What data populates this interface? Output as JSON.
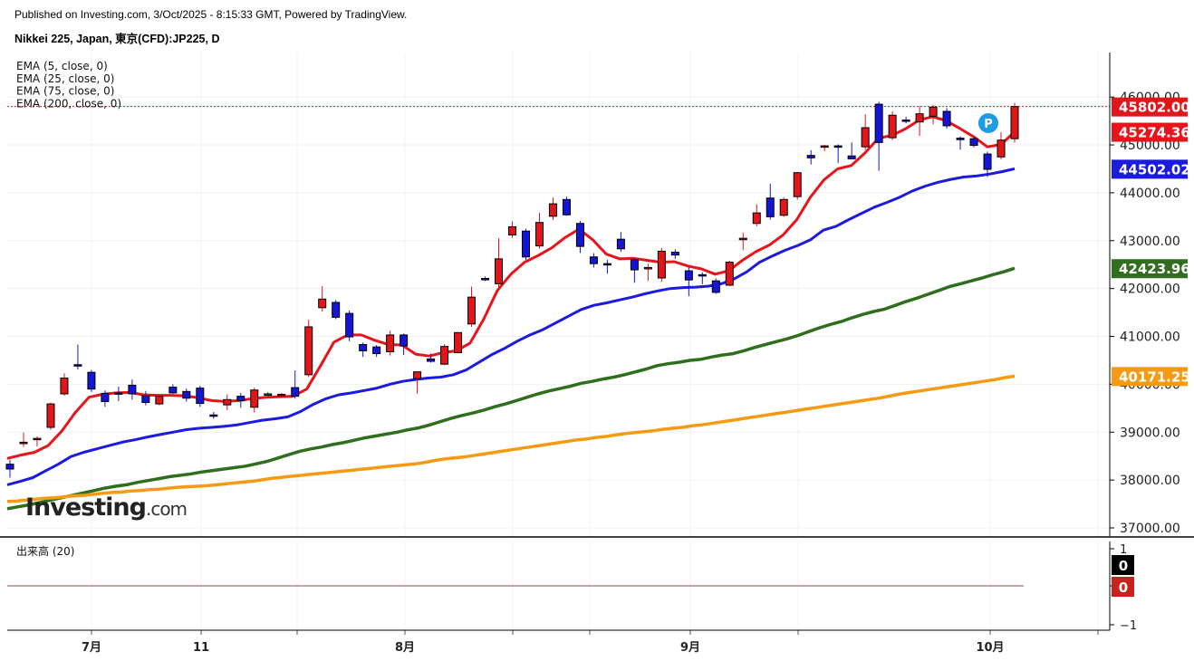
{
  "header": {
    "published": "Published on Investing.com, 3/Oct/2025 - 8:15:33 GMT, Powered by TradingView.",
    "title": "Nikkei 225, Japan, 東京(CFD):JP225, D"
  },
  "logo": {
    "text": "Investing",
    "suffix": ".com"
  },
  "volume_panel": {
    "label": "出来高 (20)",
    "ticks": [
      "1",
      "0",
      "−1"
    ],
    "badges": [
      "0",
      "0"
    ]
  },
  "colors": {
    "up": "#e0161b",
    "down": "#1515d6",
    "ema5": "#e8141c",
    "ema25": "#1a1ae0",
    "ema75": "#2f6e1d",
    "ema200": "#f59a12",
    "grid": "#eef0f3"
  },
  "marker": {
    "letter": "P"
  },
  "chart_data": {
    "type": "candlestick",
    "y_axis": {
      "ticks": [
        37000,
        38000,
        39000,
        40000,
        41000,
        42000,
        43000,
        44000,
        45000,
        46000
      ],
      "tick_labels": [
        "37000.00",
        "38000.00",
        "39000.00",
        "40000.00",
        "41000.00",
        "42000.00",
        "43000.00",
        "44000.00",
        "45000.00",
        "46000.00"
      ],
      "range": [
        36830,
        46930
      ]
    },
    "x_axis": {
      "labels": [
        "7月",
        "11",
        "8月",
        "9月",
        "10月"
      ]
    },
    "legend": [
      "EMA (5, close, 0)",
      "EMA (25, close, 0)",
      "EMA (75, close, 0)",
      "EMA (200, close, 0)"
    ],
    "price_labels": [
      {
        "name": "last",
        "value": 45802.0,
        "label": "45802.00",
        "color": "#e0161b"
      },
      {
        "name": "ema5",
        "value": 45274.36,
        "label": "45274.36",
        "color": "#e8141c"
      },
      {
        "name": "ema25",
        "value": 44502.02,
        "label": "44502.02",
        "color": "#1a1ae0"
      },
      {
        "name": "ema75",
        "value": 42423.96,
        "label": "42423.96",
        "color": "#2f6e1d"
      },
      {
        "name": "ema200",
        "value": 40171.25,
        "label": "40171.25",
        "color": "#f59a12"
      }
    ],
    "candles": [
      {
        "o": 38330,
        "h": 38420,
        "l": 38050,
        "c": 38230
      },
      {
        "o": 38760,
        "h": 38990,
        "l": 38690,
        "c": 38790
      },
      {
        "o": 38850,
        "h": 38910,
        "l": 38700,
        "c": 38870
      },
      {
        "o": 39100,
        "h": 39620,
        "l": 39050,
        "c": 39590
      },
      {
        "o": 39800,
        "h": 40230,
        "l": 39760,
        "c": 40130
      },
      {
        "o": 40410,
        "h": 40830,
        "l": 40310,
        "c": 40380
      },
      {
        "o": 40250,
        "h": 40300,
        "l": 39840,
        "c": 39900
      },
      {
        "o": 39810,
        "h": 39870,
        "l": 39530,
        "c": 39640
      },
      {
        "o": 39820,
        "h": 39950,
        "l": 39650,
        "c": 39810
      },
      {
        "o": 39980,
        "h": 40100,
        "l": 39680,
        "c": 39800
      },
      {
        "o": 39760,
        "h": 39860,
        "l": 39560,
        "c": 39620
      },
      {
        "o": 39590,
        "h": 39800,
        "l": 39560,
        "c": 39750
      },
      {
        "o": 39940,
        "h": 40000,
        "l": 39800,
        "c": 39820
      },
      {
        "o": 39850,
        "h": 39910,
        "l": 39640,
        "c": 39710
      },
      {
        "o": 39920,
        "h": 39970,
        "l": 39530,
        "c": 39600
      },
      {
        "o": 39360,
        "h": 39420,
        "l": 39280,
        "c": 39340
      },
      {
        "o": 39570,
        "h": 39790,
        "l": 39460,
        "c": 39680
      },
      {
        "o": 39750,
        "h": 39820,
        "l": 39510,
        "c": 39660
      },
      {
        "o": 39520,
        "h": 39930,
        "l": 39410,
        "c": 39880
      },
      {
        "o": 39800,
        "h": 39840,
        "l": 39740,
        "c": 39800
      },
      {
        "o": 39780,
        "h": 39820,
        "l": 39760,
        "c": 39790
      },
      {
        "o": 39930,
        "h": 40290,
        "l": 39700,
        "c": 39750
      },
      {
        "o": 40200,
        "h": 41350,
        "l": 40150,
        "c": 41200
      },
      {
        "o": 41600,
        "h": 42050,
        "l": 41520,
        "c": 41780
      },
      {
        "o": 41710,
        "h": 41760,
        "l": 41360,
        "c": 41400
      },
      {
        "o": 41480,
        "h": 41540,
        "l": 40900,
        "c": 40990
      },
      {
        "o": 40830,
        "h": 40870,
        "l": 40570,
        "c": 40700
      },
      {
        "o": 40780,
        "h": 40820,
        "l": 40570,
        "c": 40640
      },
      {
        "o": 40680,
        "h": 41120,
        "l": 40600,
        "c": 41030
      },
      {
        "o": 41030,
        "h": 41060,
        "l": 40610,
        "c": 40800
      },
      {
        "o": 40120,
        "h": 40200,
        "l": 39800,
        "c": 40260
      },
      {
        "o": 40530,
        "h": 40640,
        "l": 40450,
        "c": 40480
      },
      {
        "o": 40420,
        "h": 40840,
        "l": 40400,
        "c": 40790
      },
      {
        "o": 40660,
        "h": 41090,
        "l": 40660,
        "c": 41080
      },
      {
        "o": 41260,
        "h": 42040,
        "l": 41200,
        "c": 41820
      },
      {
        "o": 42210,
        "h": 42250,
        "l": 42160,
        "c": 42200
      },
      {
        "o": 42100,
        "h": 43050,
        "l": 42030,
        "c": 42620
      },
      {
        "o": 43120,
        "h": 43400,
        "l": 43060,
        "c": 43290
      },
      {
        "o": 43200,
        "h": 43250,
        "l": 42600,
        "c": 42660
      },
      {
        "o": 42890,
        "h": 43580,
        "l": 42830,
        "c": 43380
      },
      {
        "o": 43510,
        "h": 43900,
        "l": 43430,
        "c": 43770
      },
      {
        "o": 43860,
        "h": 43920,
        "l": 43520,
        "c": 43540
      },
      {
        "o": 43360,
        "h": 43410,
        "l": 42740,
        "c": 42880
      },
      {
        "o": 42660,
        "h": 42740,
        "l": 42440,
        "c": 42520
      },
      {
        "o": 42520,
        "h": 42600,
        "l": 42310,
        "c": 42510
      },
      {
        "o": 43030,
        "h": 43180,
        "l": 42770,
        "c": 42830
      },
      {
        "o": 42600,
        "h": 42640,
        "l": 42120,
        "c": 42390
      },
      {
        "o": 42410,
        "h": 42520,
        "l": 42160,
        "c": 42440
      },
      {
        "o": 42220,
        "h": 42850,
        "l": 42140,
        "c": 42780
      },
      {
        "o": 42760,
        "h": 42820,
        "l": 42620,
        "c": 42700
      },
      {
        "o": 42370,
        "h": 42440,
        "l": 41840,
        "c": 42180
      },
      {
        "o": 42290,
        "h": 42340,
        "l": 42090,
        "c": 42280
      },
      {
        "o": 42160,
        "h": 42210,
        "l": 41890,
        "c": 41920
      },
      {
        "o": 42070,
        "h": 42580,
        "l": 42050,
        "c": 42550
      },
      {
        "o": 43020,
        "h": 43170,
        "l": 42800,
        "c": 43050
      },
      {
        "o": 43360,
        "h": 43760,
        "l": 43300,
        "c": 43580
      },
      {
        "o": 43890,
        "h": 44190,
        "l": 43440,
        "c": 43500
      },
      {
        "o": 43530,
        "h": 43900,
        "l": 43500,
        "c": 43860
      },
      {
        "o": 43920,
        "h": 44430,
        "l": 43860,
        "c": 44420
      },
      {
        "o": 44780,
        "h": 44890,
        "l": 44590,
        "c": 44730
      },
      {
        "o": 44960,
        "h": 45000,
        "l": 44870,
        "c": 44980
      },
      {
        "o": 44980,
        "h": 45010,
        "l": 44620,
        "c": 44960
      },
      {
        "o": 44770,
        "h": 45050,
        "l": 44700,
        "c": 44710
      },
      {
        "o": 44960,
        "h": 45640,
        "l": 44900,
        "c": 45360
      },
      {
        "o": 45850,
        "h": 45900,
        "l": 44460,
        "c": 45050
      },
      {
        "o": 45150,
        "h": 45700,
        "l": 45100,
        "c": 45620
      },
      {
        "o": 45520,
        "h": 45590,
        "l": 45450,
        "c": 45510
      },
      {
        "o": 45480,
        "h": 45810,
        "l": 45190,
        "c": 45650
      },
      {
        "o": 45600,
        "h": 45840,
        "l": 45430,
        "c": 45790
      },
      {
        "o": 45700,
        "h": 45770,
        "l": 45340,
        "c": 45400
      },
      {
        "o": 45140,
        "h": 45180,
        "l": 44900,
        "c": 45110
      },
      {
        "o": 45130,
        "h": 45160,
        "l": 44950,
        "c": 44990
      },
      {
        "o": 44810,
        "h": 44860,
        "l": 44330,
        "c": 44490
      },
      {
        "o": 44750,
        "h": 45270,
        "l": 44700,
        "c": 45100
      },
      {
        "o": 45130,
        "h": 45880,
        "l": 45050,
        "c": 45802
      }
    ],
    "series": [
      {
        "name": "EMA (5, close, 0)",
        "values": [
          38450,
          38520,
          38580,
          38720,
          39020,
          39410,
          39730,
          39790,
          39820,
          39830,
          39780,
          39770,
          39770,
          39760,
          39720,
          39660,
          39640,
          39660,
          39700,
          39730,
          39740,
          39750,
          39900,
          40380,
          40880,
          41030,
          41030,
          40920,
          40830,
          40820,
          40630,
          40590,
          40660,
          40700,
          40860,
          41360,
          41960,
          42300,
          42550,
          42690,
          42850,
          43070,
          43240,
          43020,
          42720,
          42620,
          42630,
          42590,
          42550,
          42560,
          42470,
          42410,
          42300,
          42370,
          42590,
          42770,
          42910,
          43120,
          43440,
          43910,
          44270,
          44500,
          44570,
          44830,
          45140,
          45200,
          45340,
          45520,
          45590,
          45500,
          45340,
          45170,
          44960,
          45010,
          45274
        ]
      },
      {
        "name": "EMA (25, close, 0)",
        "values": [
          37900,
          37970,
          38050,
          38190,
          38330,
          38490,
          38580,
          38650,
          38720,
          38790,
          38840,
          38900,
          38950,
          39000,
          39050,
          39080,
          39100,
          39120,
          39150,
          39200,
          39250,
          39280,
          39320,
          39430,
          39580,
          39700,
          39780,
          39820,
          39870,
          39920,
          40000,
          40060,
          40100,
          40130,
          40150,
          40200,
          40300,
          40460,
          40620,
          40750,
          40900,
          41030,
          41140,
          41280,
          41420,
          41560,
          41650,
          41700,
          41760,
          41820,
          41890,
          41950,
          42000,
          42020,
          42030,
          42050,
          42100,
          42200,
          42350,
          42550,
          42680,
          42800,
          42900,
          43020,
          43220,
          43300,
          43440,
          43570,
          43700,
          43800,
          43910,
          44040,
          44140,
          44220,
          44280,
          44330,
          44350,
          44390,
          44440,
          44502
        ]
      },
      {
        "name": "EMA (75, close, 0)",
        "values": [
          37400,
          37440,
          37480,
          37530,
          37580,
          37630,
          37680,
          37730,
          37780,
          37830,
          37870,
          37900,
          37950,
          37990,
          38030,
          38070,
          38100,
          38130,
          38170,
          38200,
          38230,
          38260,
          38290,
          38340,
          38390,
          38460,
          38530,
          38600,
          38650,
          38690,
          38740,
          38780,
          38830,
          38880,
          38920,
          38960,
          39000,
          39050,
          39090,
          39150,
          39220,
          39290,
          39350,
          39400,
          39460,
          39530,
          39590,
          39660,
          39730,
          39800,
          39860,
          39910,
          39960,
          40020,
          40060,
          40110,
          40150,
          40200,
          40260,
          40320,
          40390,
          40430,
          40460,
          40500,
          40520,
          40570,
          40610,
          40640,
          40700,
          40770,
          40830,
          40890,
          40950,
          41020,
          41100,
          41180,
          41250,
          41310,
          41390,
          41460,
          41520,
          41570,
          41650,
          41730,
          41800,
          41880,
          41960,
          42040,
          42100,
          42160,
          42220,
          42290,
          42350,
          42424
        ]
      },
      {
        "name": "EMA (200, close, 0)",
        "values": [
          37550,
          37560,
          37580,
          37600,
          37620,
          37630,
          37650,
          37670,
          37680,
          37700,
          37720,
          37740,
          37750,
          37770,
          37780,
          37800,
          37810,
          37830,
          37850,
          37860,
          37870,
          37880,
          37900,
          37920,
          37940,
          37960,
          37980,
          38010,
          38040,
          38060,
          38080,
          38100,
          38120,
          38140,
          38160,
          38180,
          38200,
          38220,
          38240,
          38260,
          38280,
          38300,
          38320,
          38340,
          38370,
          38410,
          38440,
          38460,
          38480,
          38510,
          38540,
          38570,
          38600,
          38630,
          38660,
          38690,
          38720,
          38750,
          38780,
          38810,
          38840,
          38860,
          38890,
          38910,
          38940,
          38970,
          38990,
          39010,
          39030,
          39060,
          39080,
          39100,
          39130,
          39150,
          39180,
          39210,
          39240,
          39270,
          39300,
          39330,
          39360,
          39390,
          39420,
          39450,
          39480,
          39510,
          39540,
          39570,
          39600,
          39630,
          39660,
          39690,
          39720,
          39760,
          39800,
          39830,
          39860,
          39890,
          39920,
          39950,
          39980,
          40010,
          40040,
          40070,
          40100,
          40140,
          40171
        ]
      }
    ]
  }
}
